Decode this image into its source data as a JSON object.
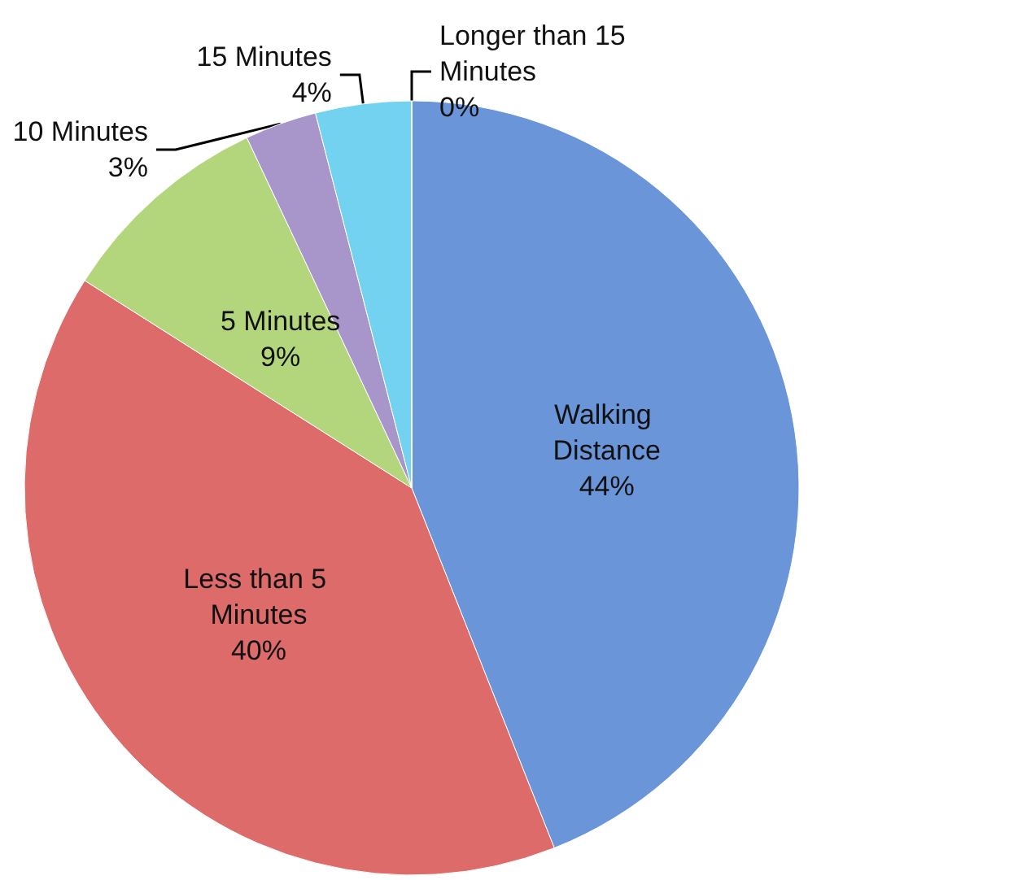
{
  "chart_data": {
    "type": "pie",
    "categories": [
      "Walking Distance",
      "Less than 5 Minutes",
      "5 Minutes",
      "10 Minutes",
      "15 Minutes",
      "Longer than 15 Minutes"
    ],
    "values": [
      44,
      40,
      9,
      3,
      4,
      0
    ],
    "value_labels": [
      "44%",
      "40%",
      "9%",
      "3%",
      "4%",
      "0%"
    ],
    "colors": [
      "#6a95d8",
      "#dc6b69",
      "#b3d57c",
      "#a896cb",
      "#72d2f0",
      "#f2a65a"
    ]
  }
}
